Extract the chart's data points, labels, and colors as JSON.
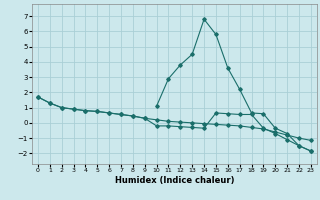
{
  "title": "",
  "xlabel": "Humidex (Indice chaleur)",
  "bg_color": "#cce8ec",
  "grid_color": "#aacfd6",
  "line_color": "#1a6e6a",
  "xlim": [
    -0.5,
    23.5
  ],
  "ylim": [
    -2.7,
    7.8
  ],
  "xticks": [
    0,
    1,
    2,
    3,
    4,
    5,
    6,
    7,
    8,
    9,
    10,
    11,
    12,
    13,
    14,
    15,
    16,
    17,
    18,
    19,
    20,
    21,
    22,
    23
  ],
  "yticks": [
    -2,
    -1,
    0,
    1,
    2,
    3,
    4,
    5,
    6,
    7
  ],
  "series1_x": [
    0,
    1,
    2,
    3,
    4,
    5,
    6,
    7,
    8,
    9,
    10,
    11,
    12,
    13,
    14,
    15,
    16,
    17,
    18,
    19,
    20,
    21,
    22,
    23
  ],
  "series1_y": [
    1.7,
    1.3,
    1.0,
    0.9,
    0.8,
    0.75,
    0.65,
    0.55,
    0.45,
    0.3,
    0.2,
    0.1,
    0.05,
    0.0,
    -0.05,
    -0.1,
    -0.15,
    -0.2,
    -0.3,
    -0.4,
    -0.6,
    -0.8,
    -1.0,
    -1.15
  ],
  "series2_x": [
    0,
    1,
    2,
    3,
    4,
    5,
    6,
    7,
    8,
    9,
    10,
    11,
    12,
    13,
    14,
    15,
    16,
    17,
    18,
    19,
    20,
    21,
    22,
    23
  ],
  "series2_y": [
    1.7,
    1.3,
    1.0,
    0.9,
    0.8,
    0.75,
    0.65,
    0.55,
    0.45,
    0.3,
    -0.2,
    -0.2,
    -0.25,
    -0.3,
    -0.35,
    0.65,
    0.6,
    0.55,
    0.55,
    -0.35,
    -0.7,
    -1.1,
    -1.5,
    -1.85
  ],
  "series3_x": [
    10,
    11,
    12,
    13,
    14,
    15,
    16,
    17,
    18,
    19,
    20,
    21,
    22,
    23
  ],
  "series3_y": [
    1.1,
    2.9,
    3.8,
    4.5,
    6.8,
    5.8,
    3.6,
    2.2,
    0.65,
    0.6,
    -0.35,
    -0.7,
    -1.5,
    -1.85
  ]
}
